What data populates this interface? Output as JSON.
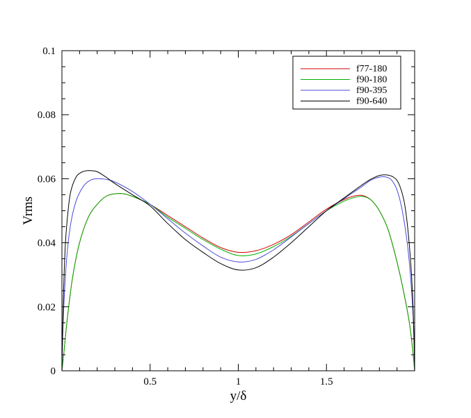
{
  "chart_data": {
    "type": "line",
    "xlabel": "y/δ",
    "ylabel": "Vrms",
    "xlim": [
      0,
      2
    ],
    "ylim": [
      0,
      0.1
    ],
    "x_ticks": [
      0.5,
      1,
      1.5
    ],
    "x_tick_labels": [
      "0.5",
      "1",
      "1.5"
    ],
    "y_ticks": [
      0,
      0.02,
      0.04,
      0.06,
      0.08,
      0.1
    ],
    "y_tick_labels": [
      "0",
      "0.02",
      "0.04",
      "0.06",
      "0.08",
      "0.1"
    ],
    "grid": false,
    "legend_position": "top-right",
    "series": [
      {
        "name": "f77-180",
        "color": "#d00000",
        "x": [
          0,
          0.01,
          0.03,
          0.06,
          0.1,
          0.15,
          0.2,
          0.25,
          0.3,
          0.35,
          0.4,
          0.5,
          0.6,
          0.7,
          0.8,
          0.9,
          1.0,
          1.1,
          1.2,
          1.3,
          1.4,
          1.5,
          1.6,
          1.65,
          1.7,
          1.75,
          1.8,
          1.85,
          1.9,
          1.94,
          1.97,
          1.99,
          2.0
        ],
        "y": [
          0,
          0.005,
          0.016,
          0.029,
          0.04,
          0.048,
          0.052,
          0.0545,
          0.0553,
          0.0553,
          0.0545,
          0.052,
          0.0485,
          0.045,
          0.0415,
          0.0385,
          0.037,
          0.0375,
          0.0395,
          0.0425,
          0.0465,
          0.0505,
          0.0535,
          0.0545,
          0.0548,
          0.0535,
          0.05,
          0.044,
          0.034,
          0.024,
          0.015,
          0.006,
          0
        ]
      },
      {
        "name": "f90-180",
        "color": "#00b000",
        "x": [
          0,
          0.01,
          0.03,
          0.06,
          0.1,
          0.15,
          0.2,
          0.25,
          0.3,
          0.35,
          0.4,
          0.5,
          0.6,
          0.7,
          0.8,
          0.9,
          1.0,
          1.1,
          1.2,
          1.3,
          1.4,
          1.5,
          1.6,
          1.65,
          1.7,
          1.75,
          1.8,
          1.85,
          1.9,
          1.94,
          1.97,
          1.99,
          2.0
        ],
        "y": [
          0,
          0.005,
          0.016,
          0.029,
          0.04,
          0.048,
          0.052,
          0.0545,
          0.0553,
          0.0553,
          0.0545,
          0.052,
          0.048,
          0.0445,
          0.041,
          0.038,
          0.036,
          0.0365,
          0.0388,
          0.042,
          0.046,
          0.05,
          0.053,
          0.054,
          0.0545,
          0.0535,
          0.05,
          0.044,
          0.034,
          0.024,
          0.015,
          0.006,
          0
        ]
      },
      {
        "name": "f90-395",
        "color": "#4a4ad8",
        "x": [
          0,
          0.005,
          0.015,
          0.03,
          0.05,
          0.08,
          0.12,
          0.16,
          0.2,
          0.25,
          0.3,
          0.4,
          0.5,
          0.6,
          0.7,
          0.8,
          0.9,
          1.0,
          1.1,
          1.2,
          1.3,
          1.4,
          1.5,
          1.6,
          1.7,
          1.75,
          1.8,
          1.84,
          1.87,
          1.9,
          1.93,
          1.96,
          1.98,
          1.995,
          2.0
        ],
        "y": [
          0,
          0.012,
          0.025,
          0.037,
          0.046,
          0.053,
          0.0575,
          0.0595,
          0.06,
          0.0598,
          0.059,
          0.056,
          0.052,
          0.0475,
          0.043,
          0.039,
          0.0355,
          0.034,
          0.0348,
          0.0378,
          0.0418,
          0.046,
          0.05,
          0.0538,
          0.0575,
          0.0595,
          0.0605,
          0.0605,
          0.0595,
          0.0565,
          0.05,
          0.039,
          0.027,
          0.013,
          0
        ]
      },
      {
        "name": "f90-640",
        "color": "#000000",
        "x": [
          0,
          0.004,
          0.01,
          0.02,
          0.035,
          0.05,
          0.08,
          0.11,
          0.14,
          0.17,
          0.2,
          0.25,
          0.3,
          0.4,
          0.5,
          0.6,
          0.7,
          0.8,
          0.9,
          1.0,
          1.1,
          1.2,
          1.3,
          1.4,
          1.5,
          1.6,
          1.7,
          1.75,
          1.8,
          1.84,
          1.88,
          1.91,
          1.94,
          1.96,
          1.98,
          1.99,
          1.996,
          2.0
        ],
        "y": [
          0,
          0.012,
          0.026,
          0.04,
          0.05,
          0.056,
          0.0605,
          0.062,
          0.0625,
          0.0625,
          0.0622,
          0.0605,
          0.0585,
          0.055,
          0.0515,
          0.046,
          0.041,
          0.037,
          0.0335,
          0.0315,
          0.0322,
          0.0355,
          0.04,
          0.045,
          0.05,
          0.054,
          0.058,
          0.0598,
          0.061,
          0.0612,
          0.0605,
          0.0585,
          0.053,
          0.045,
          0.032,
          0.021,
          0.01,
          0
        ]
      }
    ]
  }
}
